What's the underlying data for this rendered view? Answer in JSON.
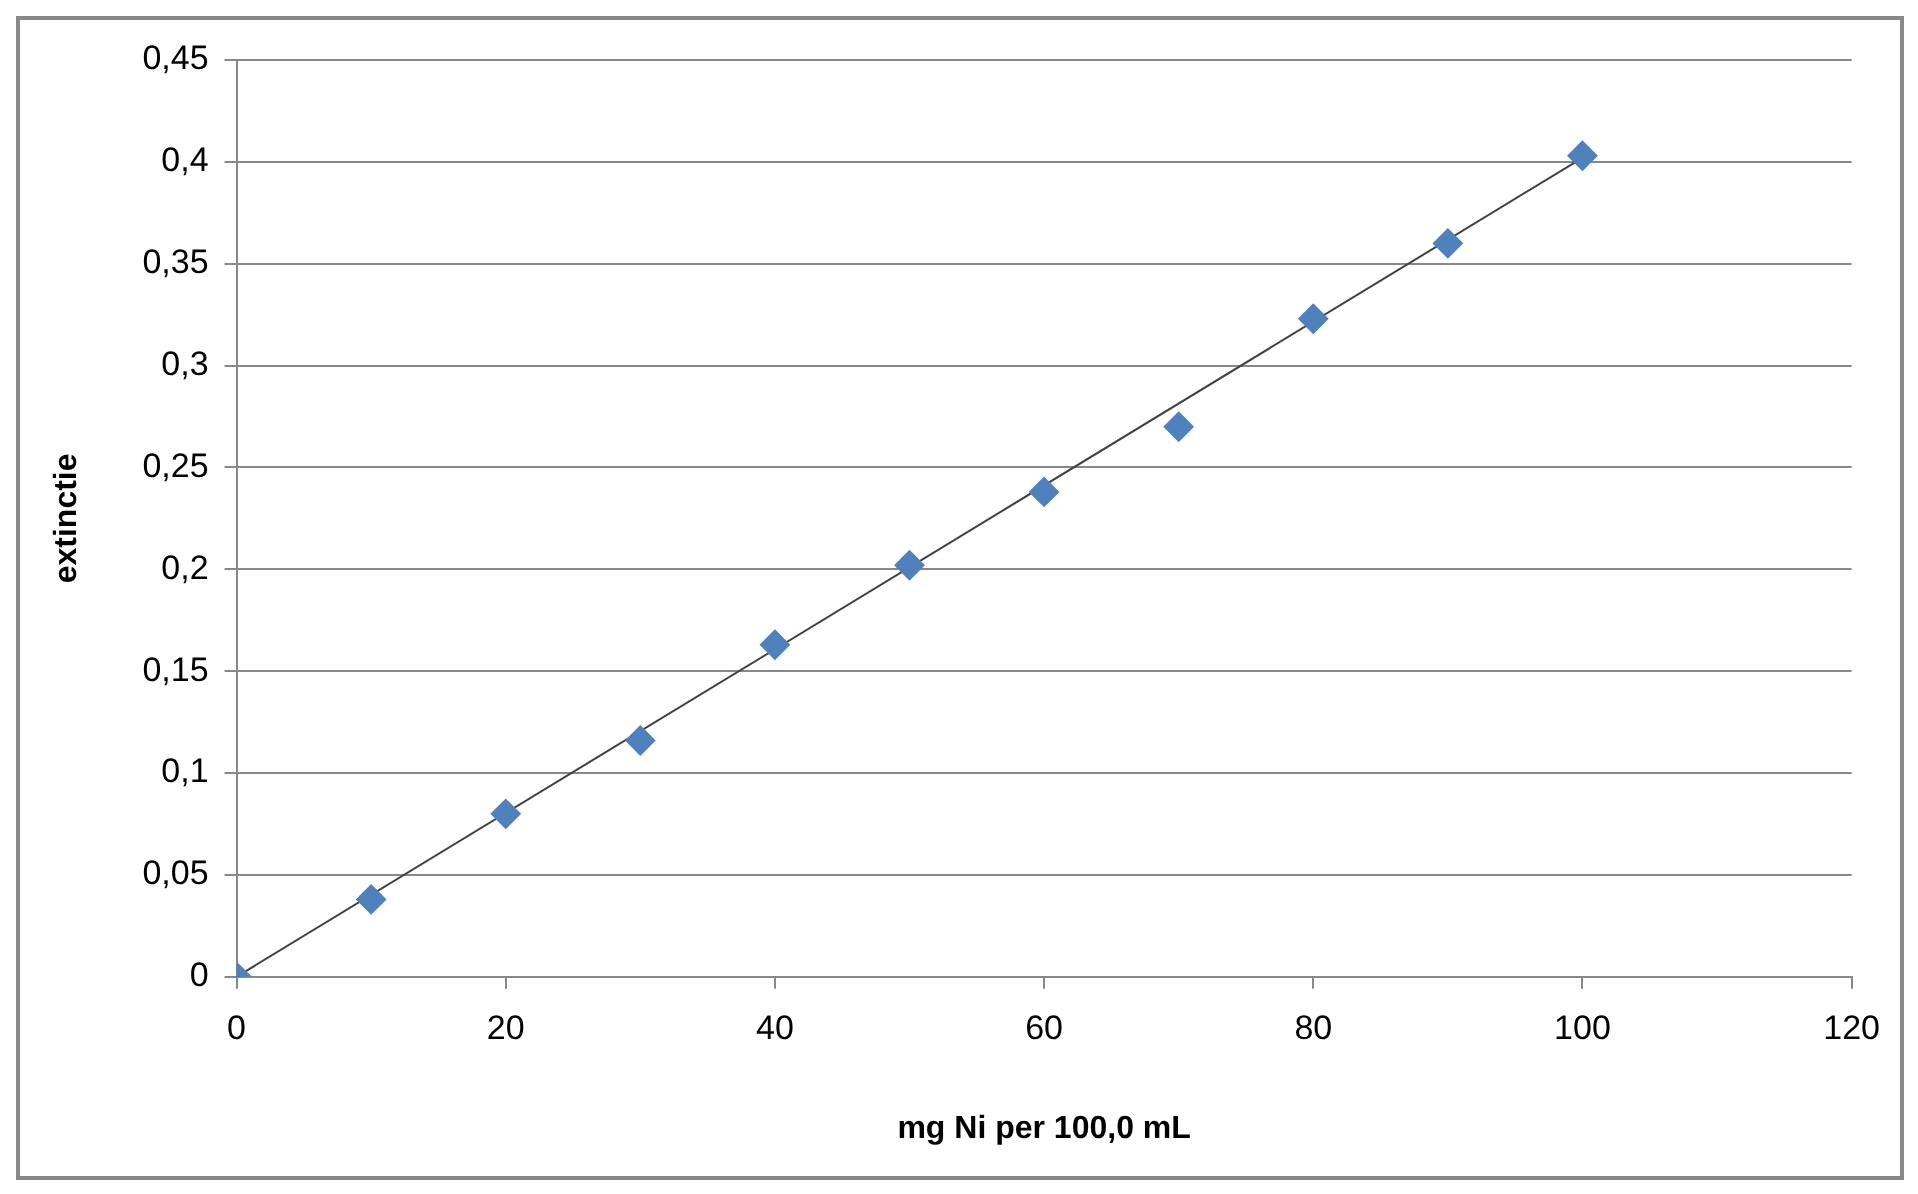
{
  "chart_data": {
    "type": "scatter",
    "xlabel": "mg Ni per 100,0 mL",
    "ylabel": "extinctie",
    "marker": "diamond",
    "grid": "y",
    "xlim": [
      0,
      120
    ],
    "xticks": [
      0,
      20,
      40,
      60,
      80,
      100,
      120
    ],
    "ylim": [
      0,
      0.45
    ],
    "yticks": [
      0,
      {
        "value": 0.05,
        "label": "0,05"
      },
      {
        "value": 0.1,
        "label": "0,1"
      },
      {
        "value": 0.15,
        "label": "0,15"
      },
      {
        "value": 0.2,
        "label": "0,2"
      },
      {
        "value": 0.25,
        "label": "0,25"
      },
      {
        "value": 0.3,
        "label": "0,3"
      },
      {
        "value": 0.35,
        "label": "0,35"
      },
      {
        "value": 0.4,
        "label": "0,4"
      },
      {
        "value": 0.45,
        "label": "0,45"
      }
    ],
    "series": [
      {
        "color": "#4f81bd",
        "x": [
          0,
          10,
          20,
          30,
          40,
          50,
          60,
          70,
          80,
          90,
          100
        ],
        "values": [
          0,
          0.038,
          0.08,
          0.116,
          0.163,
          0.202,
          0.238,
          0.27,
          0.323,
          0.36,
          0.403
        ]
      },
      {
        "type": "line",
        "marker": "none",
        "color": "#404040",
        "x": [
          0,
          100
        ],
        "values": [
          0,
          0.402
        ]
      }
    ]
  }
}
